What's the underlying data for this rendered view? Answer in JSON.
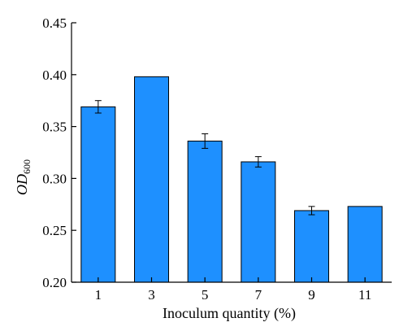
{
  "chart_data": {
    "type": "bar",
    "categories": [
      "1",
      "3",
      "5",
      "7",
      "9",
      "11"
    ],
    "values": [
      0.369,
      0.398,
      0.336,
      0.316,
      0.269,
      0.273
    ],
    "errors": [
      0.006,
      0,
      0.007,
      0.005,
      0.004,
      0
    ],
    "xlabel": "Inoculum quantity (%)",
    "ylabel": {
      "main": "OD",
      "subscript": "600"
    },
    "ylim": [
      0.2,
      0.45
    ],
    "yticks": [
      "0.20",
      "0.25",
      "0.30",
      "0.35",
      "0.40",
      "0.45"
    ],
    "bar_color": "#1E90FF",
    "grid": false,
    "legend": "none"
  }
}
